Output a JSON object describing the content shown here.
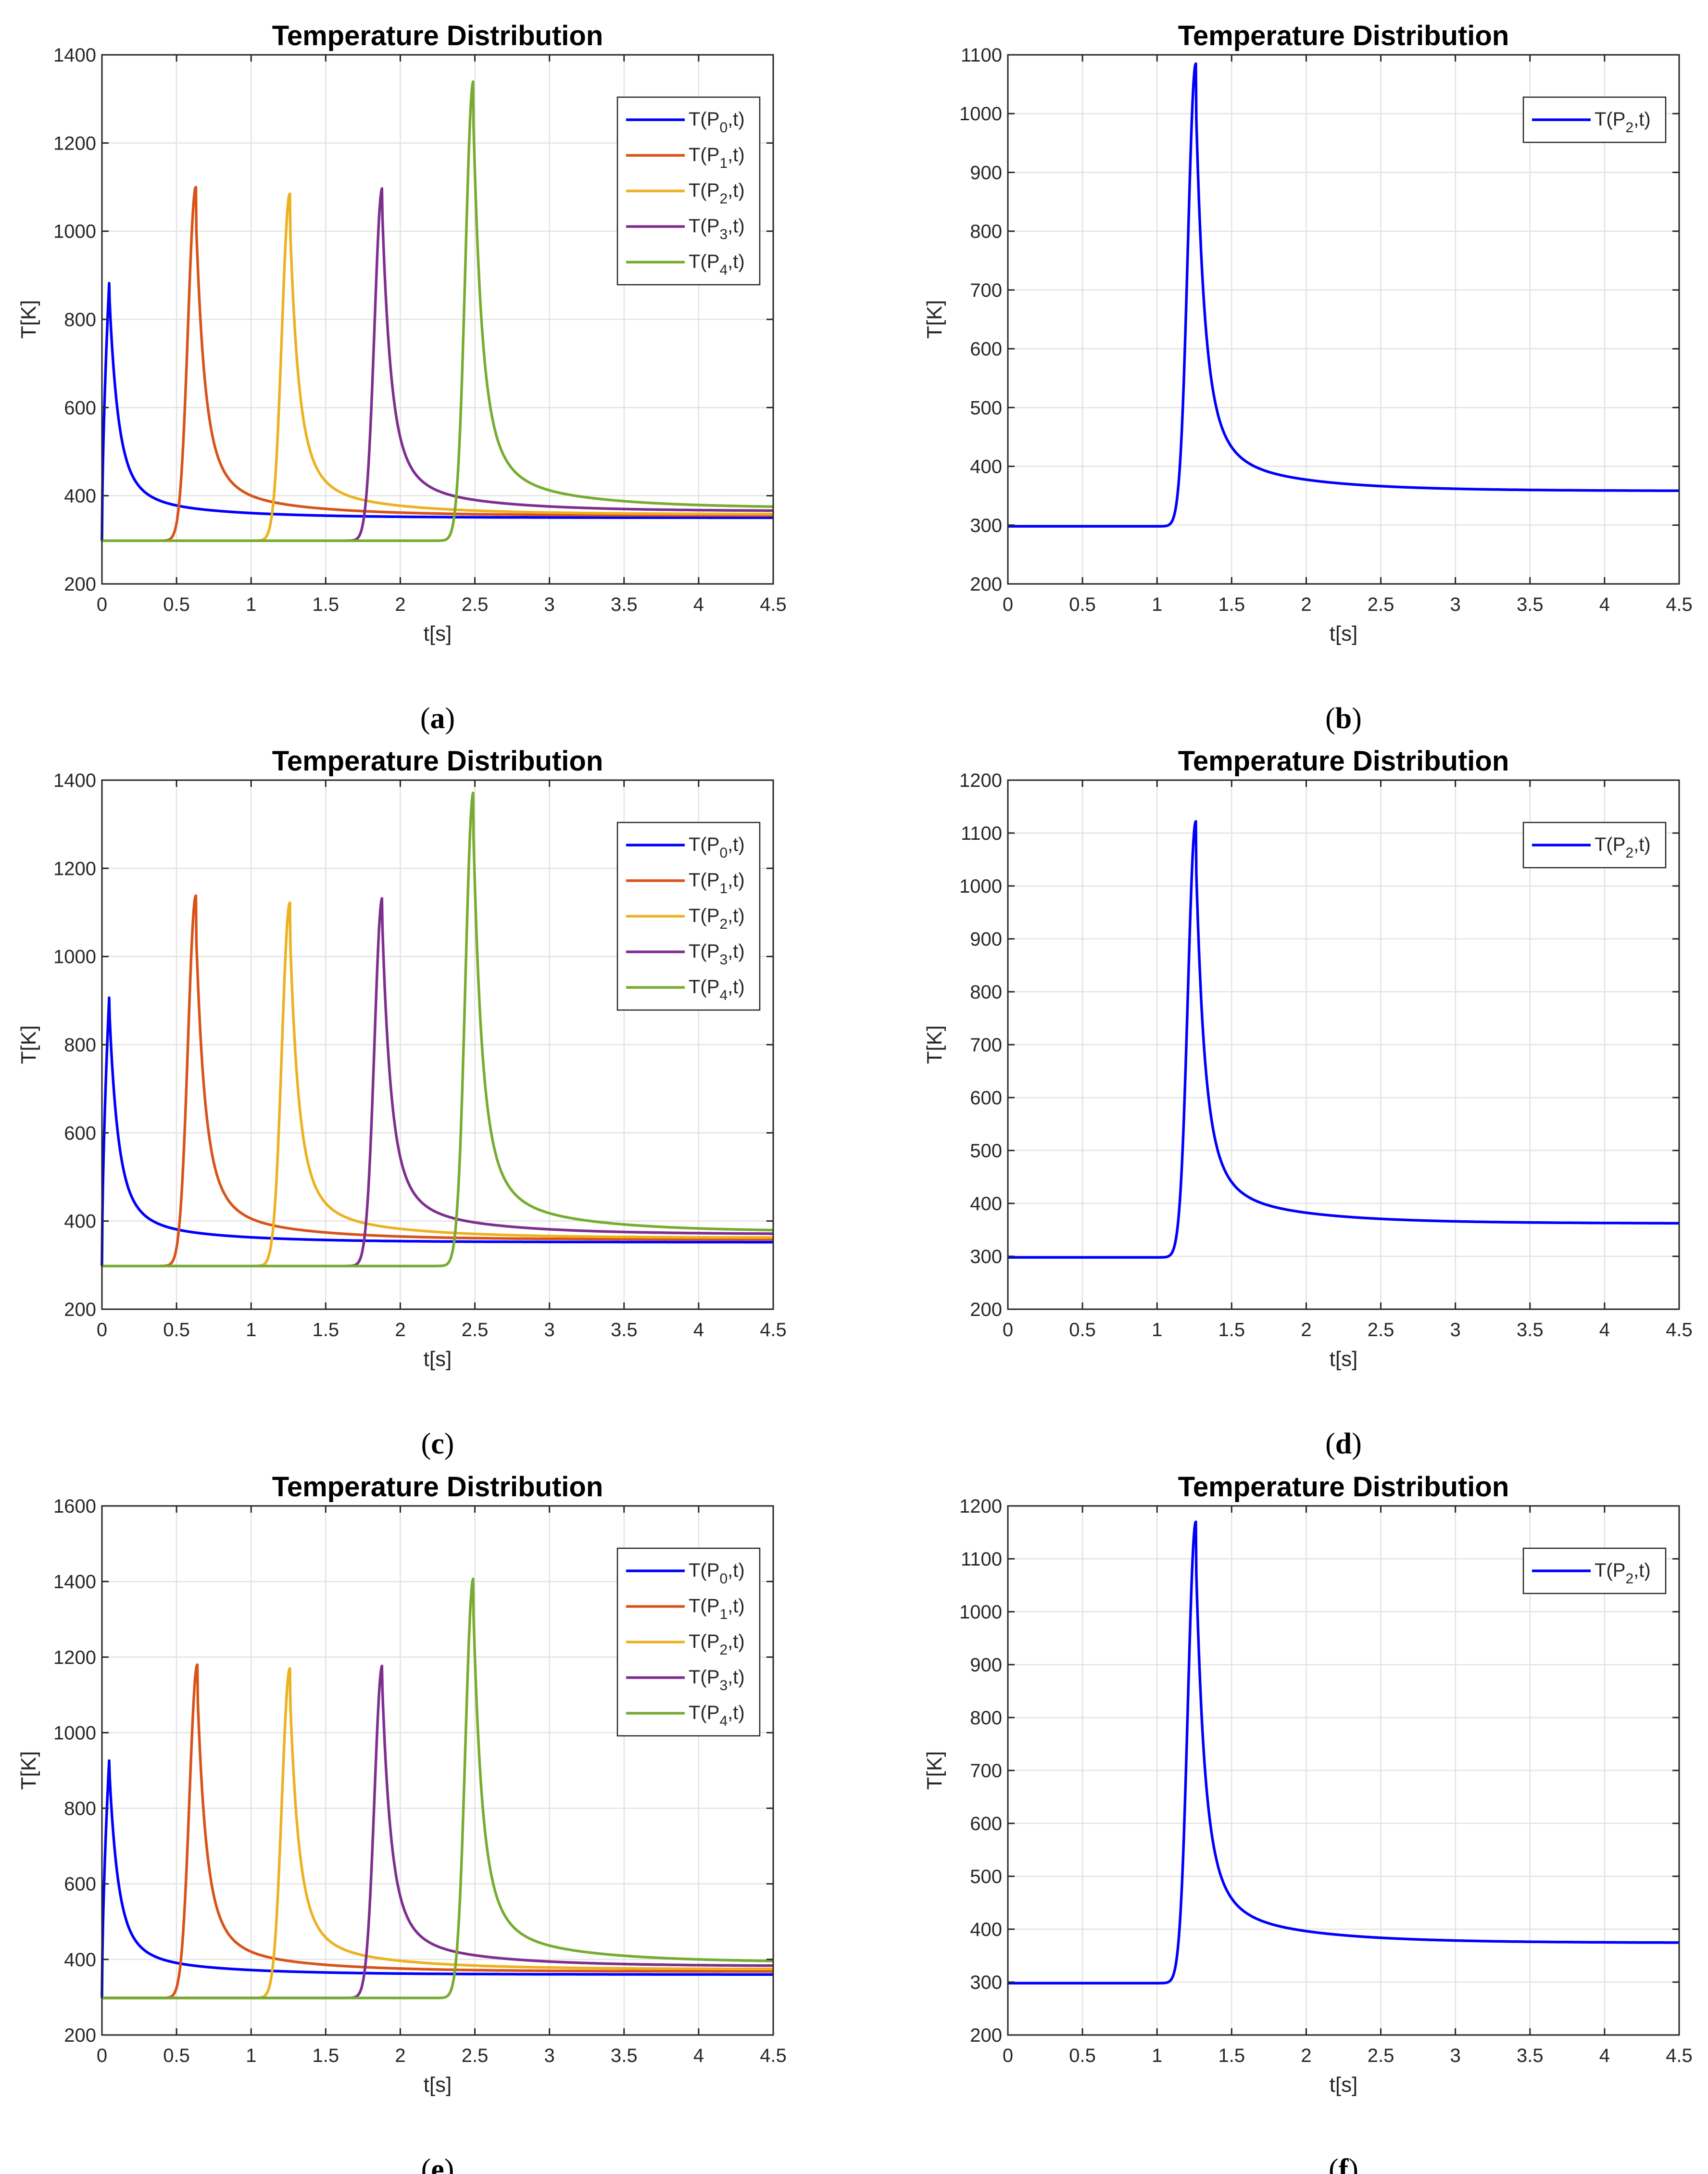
{
  "figure": {
    "panels_count": 6
  },
  "chart_data": [
    {
      "id": "a",
      "caption_letter": "a",
      "type": "line",
      "title": "Temperature Distribution",
      "xlabel": "t[s]",
      "ylabel": "T[K]",
      "xlim": [
        0,
        4.5
      ],
      "ylim": [
        200,
        1400
      ],
      "xticks": [
        "0",
        "0.5",
        "1",
        "1.5",
        "2",
        "2.5",
        "3",
        "3.5",
        "4",
        "4.5"
      ],
      "yticks": [
        "200",
        "400",
        "600",
        "800",
        "1000",
        "1200",
        "1400"
      ],
      "grid": true,
      "legend_position": "top-right",
      "series": [
        {
          "name": "T(P0,t)",
          "label_main": "T(P",
          "label_sub": "0",
          "label_end": ",t)",
          "color": "#0000FF",
          "t0": 0.05,
          "peak": 895,
          "asym": 350
        },
        {
          "name": "T(P1,t)",
          "label_main": "T(P",
          "label_sub": "1",
          "label_end": ",t)",
          "color": "#D95319",
          "t0": 0.63,
          "peak": 1100,
          "asym": 355
        },
        {
          "name": "T(P2,t)",
          "label_main": "T(P",
          "label_sub": "2",
          "label_end": ",t)",
          "color": "#EDB120",
          "t0": 1.26,
          "peak": 1085,
          "asym": 358
        },
        {
          "name": "T(P3,t)",
          "label_main": "T(P",
          "label_sub": "3",
          "label_end": ",t)",
          "color": "#7E2F8E",
          "t0": 1.88,
          "peak": 1098,
          "asym": 365
        },
        {
          "name": "T(P4,t)",
          "label_main": "T(P",
          "label_sub": "4",
          "label_end": ",t)",
          "color": "#77AC30",
          "t0": 2.49,
          "peak": 1340,
          "asym": 372
        }
      ]
    },
    {
      "id": "b",
      "caption_letter": "b",
      "type": "line",
      "title": "Temperature Distribution",
      "xlabel": "t[s]",
      "ylabel": "T[K]",
      "xlim": [
        0,
        4.5
      ],
      "ylim": [
        200,
        1100
      ],
      "xticks": [
        "0",
        "0.5",
        "1",
        "1.5",
        "2",
        "2.5",
        "3",
        "3.5",
        "4",
        "4.5"
      ],
      "yticks": [
        "200",
        "300",
        "400",
        "500",
        "600",
        "700",
        "800",
        "900",
        "1000",
        "1100"
      ],
      "grid": true,
      "legend_position": "top-right",
      "series": [
        {
          "name": "T(P2,t)",
          "label_main": "T(P",
          "label_sub": "2",
          "label_end": ",t)",
          "color": "#0000FF",
          "t0": 1.26,
          "peak": 1085,
          "asym": 358
        }
      ]
    },
    {
      "id": "c",
      "caption_letter": "c",
      "type": "line",
      "title": "Temperature Distribution",
      "xlabel": "t[s]",
      "ylabel": "T[K]",
      "xlim": [
        0,
        4.5
      ],
      "ylim": [
        200,
        1400
      ],
      "xticks": [
        "0",
        "0.5",
        "1",
        "1.5",
        "2",
        "2.5",
        "3",
        "3.5",
        "4",
        "4.5"
      ],
      "yticks": [
        "200",
        "400",
        "600",
        "800",
        "1000",
        "1200",
        "1400"
      ],
      "grid": true,
      "legend_position": "top-right",
      "series": [
        {
          "name": "T(P0,t)",
          "label_main": "T(P",
          "label_sub": "0",
          "label_end": ",t)",
          "color": "#0000FF",
          "t0": 0.05,
          "peak": 920,
          "asym": 352
        },
        {
          "name": "T(P1,t)",
          "label_main": "T(P",
          "label_sub": "1",
          "label_end": ",t)",
          "color": "#D95319",
          "t0": 0.63,
          "peak": 1138,
          "asym": 358
        },
        {
          "name": "T(P2,t)",
          "label_main": "T(P",
          "label_sub": "2",
          "label_end": ",t)",
          "color": "#EDB120",
          "t0": 1.26,
          "peak": 1122,
          "asym": 362
        },
        {
          "name": "T(P3,t)",
          "label_main": "T(P",
          "label_sub": "3",
          "label_end": ",t)",
          "color": "#7E2F8E",
          "t0": 1.88,
          "peak": 1133,
          "asym": 370
        },
        {
          "name": "T(P4,t)",
          "label_main": "T(P",
          "label_sub": "4",
          "label_end": ",t)",
          "color": "#77AC30",
          "t0": 2.49,
          "peak": 1372,
          "asym": 376
        }
      ]
    },
    {
      "id": "d",
      "caption_letter": "d",
      "type": "line",
      "title": "Temperature Distribution",
      "xlabel": "t[s]",
      "ylabel": "T[K]",
      "xlim": [
        0,
        4.5
      ],
      "ylim": [
        200,
        1200
      ],
      "xticks": [
        "0",
        "0.5",
        "1",
        "1.5",
        "2",
        "2.5",
        "3",
        "3.5",
        "4",
        "4.5"
      ],
      "yticks": [
        "200",
        "300",
        "400",
        "500",
        "600",
        "700",
        "800",
        "900",
        "1000",
        "1100",
        "1200"
      ],
      "grid": true,
      "legend_position": "top-right",
      "series": [
        {
          "name": "T(P2,t)",
          "label_main": "T(P",
          "label_sub": "2",
          "label_end": ",t)",
          "color": "#0000FF",
          "t0": 1.26,
          "peak": 1122,
          "asym": 362
        }
      ]
    },
    {
      "id": "e",
      "caption_letter": "e",
      "type": "line",
      "title": "Temperature Distribution",
      "xlabel": "t[s]",
      "ylabel": "T[K]",
      "xlim": [
        0,
        4.5
      ],
      "ylim": [
        200,
        1600
      ],
      "xticks": [
        "0",
        "0.5",
        "1",
        "1.5",
        "2",
        "2.5",
        "3",
        "3.5",
        "4",
        "4.5"
      ],
      "yticks": [
        "200",
        "400",
        "600",
        "800",
        "1000",
        "1200",
        "1400",
        "1600"
      ],
      "grid": true,
      "legend_position": "top-right",
      "series": [
        {
          "name": "T(P0,t)",
          "label_main": "T(P",
          "label_sub": "0",
          "label_end": ",t)",
          "color": "#0000FF",
          "t0": 0.05,
          "peak": 940,
          "asym": 360
        },
        {
          "name": "T(P1,t)",
          "label_main": "T(P",
          "label_sub": "1",
          "label_end": ",t)",
          "color": "#D95319",
          "t0": 0.64,
          "peak": 1180,
          "asym": 368
        },
        {
          "name": "T(P2,t)",
          "label_main": "T(P",
          "label_sub": "2",
          "label_end": ",t)",
          "color": "#EDB120",
          "t0": 1.26,
          "peak": 1170,
          "asym": 374
        },
        {
          "name": "T(P3,t)",
          "label_main": "T(P",
          "label_sub": "3",
          "label_end": ",t)",
          "color": "#7E2F8E",
          "t0": 1.88,
          "peak": 1178,
          "asym": 382
        },
        {
          "name": "T(P4,t)",
          "label_main": "T(P",
          "label_sub": "4",
          "label_end": ",t)",
          "color": "#77AC30",
          "t0": 2.49,
          "peak": 1408,
          "asym": 392
        }
      ]
    },
    {
      "id": "f",
      "caption_letter": "f",
      "type": "line",
      "title": "Temperature Distribution",
      "xlabel": "t[s]",
      "ylabel": "T[K]",
      "xlim": [
        0,
        4.5
      ],
      "ylim": [
        200,
        1200
      ],
      "xticks": [
        "0",
        "0.5",
        "1",
        "1.5",
        "2",
        "2.5",
        "3",
        "3.5",
        "4",
        "4.5"
      ],
      "yticks": [
        "200",
        "300",
        "400",
        "500",
        "600",
        "700",
        "800",
        "900",
        "1000",
        "1100",
        "1200"
      ],
      "grid": true,
      "legend_position": "top-right",
      "series": [
        {
          "name": "T(P2,t)",
          "label_main": "T(P",
          "label_sub": "2",
          "label_end": ",t)",
          "color": "#0000FF",
          "t0": 1.26,
          "peak": 1170,
          "asym": 374
        }
      ]
    }
  ],
  "colors": {
    "axis": "#262626",
    "grid": "#E3E3E3",
    "background": "#FFFFFF",
    "baseline_temperature": 298
  }
}
